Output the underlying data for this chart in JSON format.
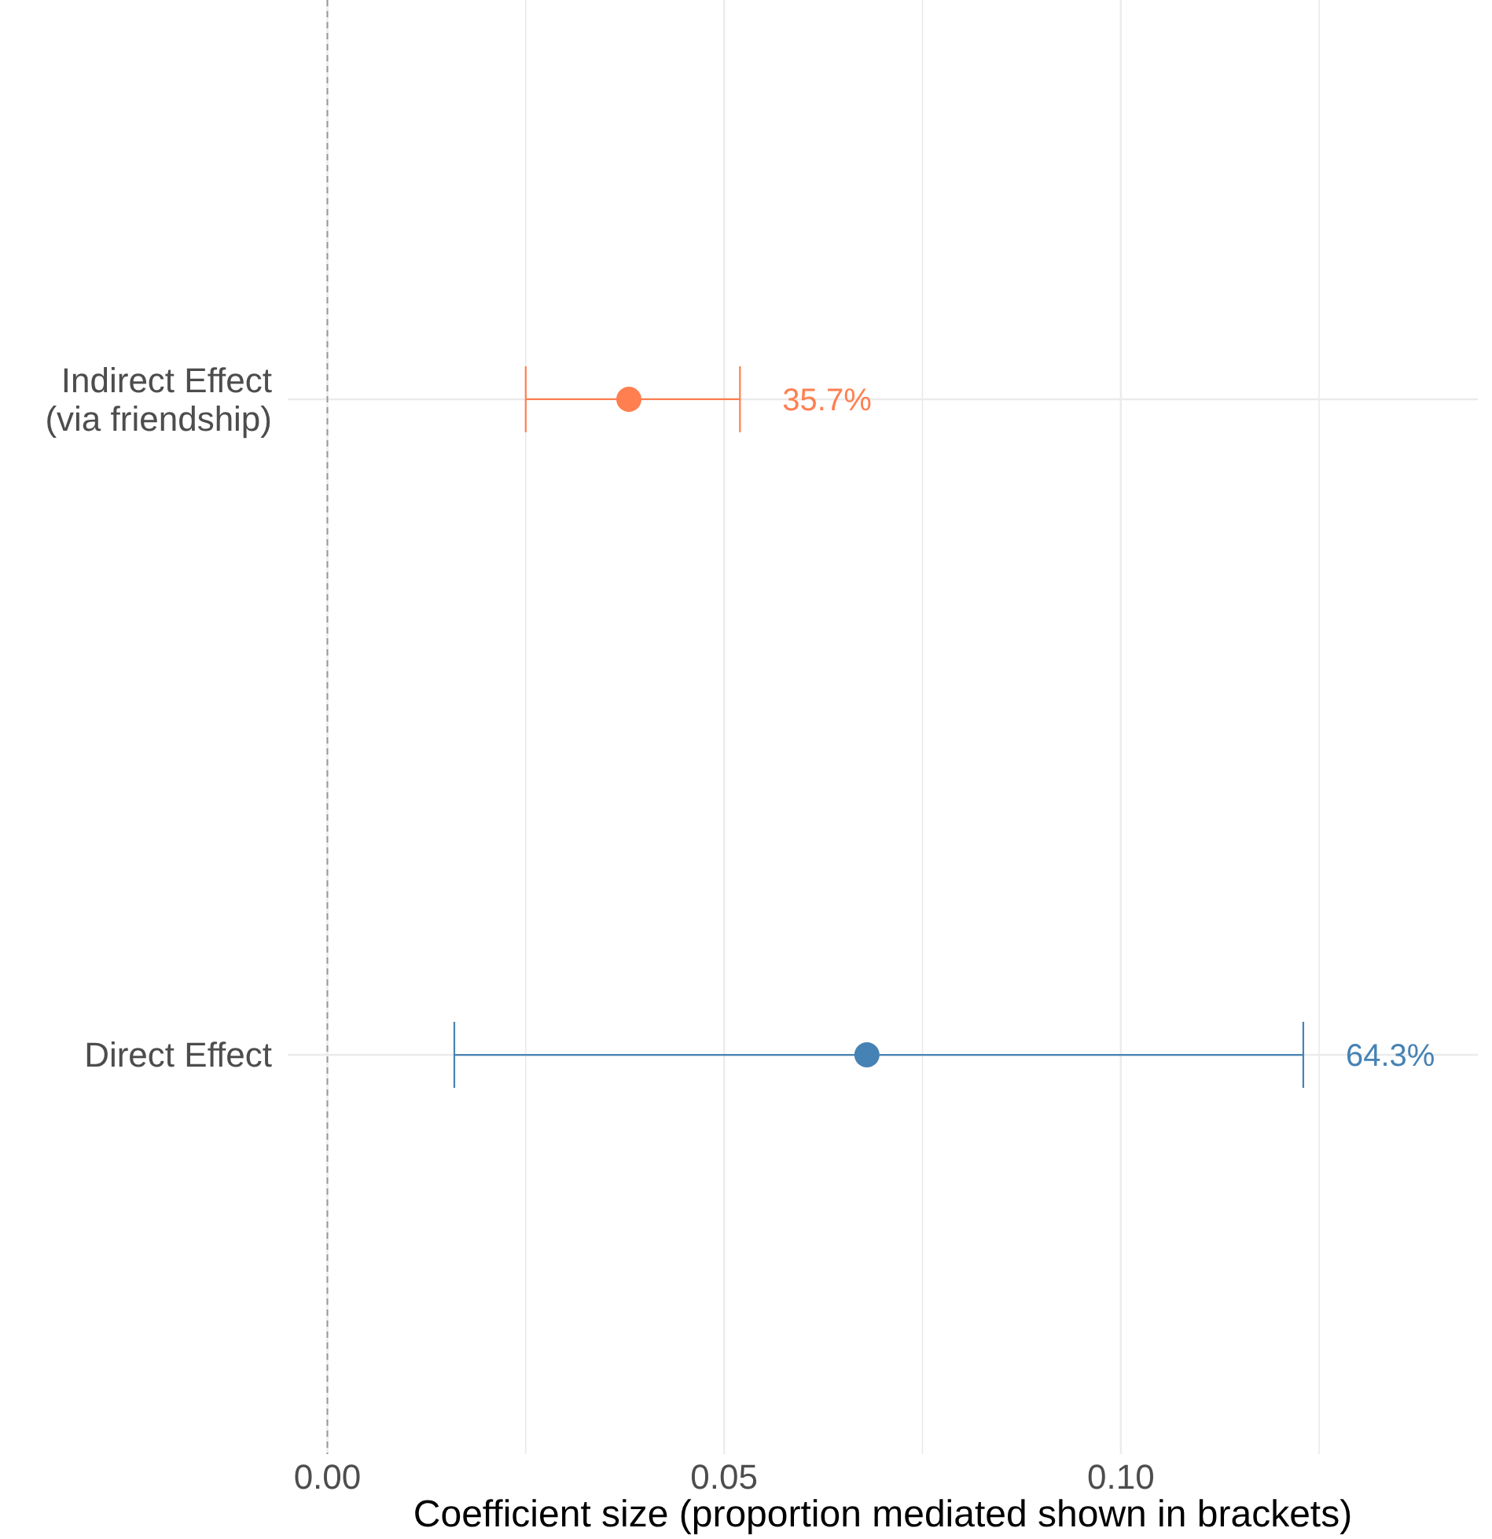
{
  "chart_data": {
    "type": "scatter",
    "orientation": "horizontal",
    "xlabel": "Coefficient size (proportion mediated shown in brackets)",
    "categories": [
      "Indirect Effect\n(via friendship)",
      "Direct Effect"
    ],
    "values": [
      0.038,
      0.068
    ],
    "errors": [
      [
        0.025,
        0.052
      ],
      [
        0.016,
        0.123
      ]
    ],
    "colors": [
      "#ff7f50",
      "#4682b4"
    ],
    "annotations": [
      {
        "text": "35.7%",
        "x": 0.052,
        "y": "Indirect Effect\n(via friendship)"
      },
      {
        "text": "64.3%",
        "x": 0.123,
        "y": "Direct Effect"
      }
    ],
    "xlim": [
      -0.005,
      0.145
    ],
    "xticks": [
      {
        "value": 0,
        "label": "0.00"
      },
      {
        "value": 0.025,
        "label": null
      },
      {
        "value": 0.05,
        "label": "0.05"
      },
      {
        "value": 0.075,
        "label": null
      },
      {
        "value": 0.1,
        "label": "0.10"
      },
      {
        "value": 0.125,
        "label": null
      }
    ],
    "ref_lines": [
      {
        "axis": "x",
        "value": 0,
        "color": "#999999",
        "line_style": "dashed"
      }
    ],
    "grid": true,
    "marker": "circle"
  }
}
